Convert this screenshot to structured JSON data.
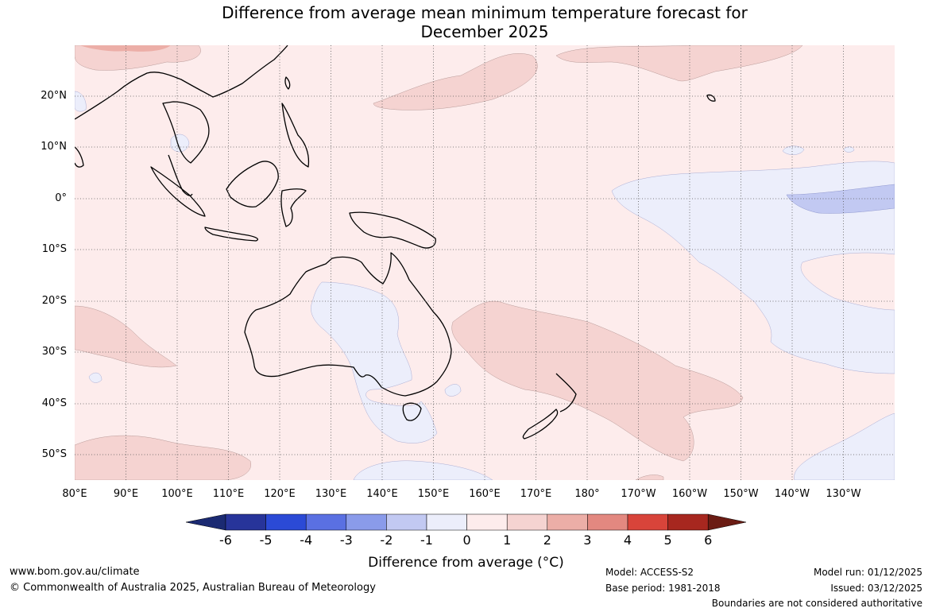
{
  "title_line1": "Difference from average mean minimum temperature forecast for",
  "title_line2": "December 2025",
  "lat_labels": [
    "20°N",
    "10°N",
    "0°",
    "10°S",
    "20°S",
    "30°S",
    "40°S",
    "50°S"
  ],
  "lon_labels": [
    "80°E",
    "90°E",
    "100°E",
    "110°E",
    "120°E",
    "130°E",
    "140°E",
    "150°E",
    "160°E",
    "170°E",
    "180°",
    "170°W",
    "160°W",
    "150°W",
    "140°W",
    "130°W"
  ],
  "colorbar": {
    "ticks": [
      "-6",
      "-5",
      "-4",
      "-3",
      "-2",
      "-1",
      "0",
      "1",
      "2",
      "3",
      "4",
      "5",
      "6"
    ],
    "colors": [
      "#27349a",
      "#2b4ad6",
      "#5a70e2",
      "#8a9bea",
      "#c2c9f2",
      "#eceefb",
      "#fdecec",
      "#f5d3d1",
      "#ecaea7",
      "#e38880",
      "#d8443a",
      "#a7271f",
      "#6b1c14"
    ],
    "title": "Difference from average (°C)"
  },
  "footer": {
    "website": "www.bom.gov.au/climate",
    "copyright": "© Commonwealth of Australia 2025, Australian Bureau of Meteorology",
    "model": "Model: ACCESS-S2",
    "base_period": "Base period: 1981-2018",
    "model_run": "Model run: 01/12/2025",
    "issued": "Issued: 03/12/2025",
    "disclaimer": "Boundaries are not considered authoritative"
  }
}
